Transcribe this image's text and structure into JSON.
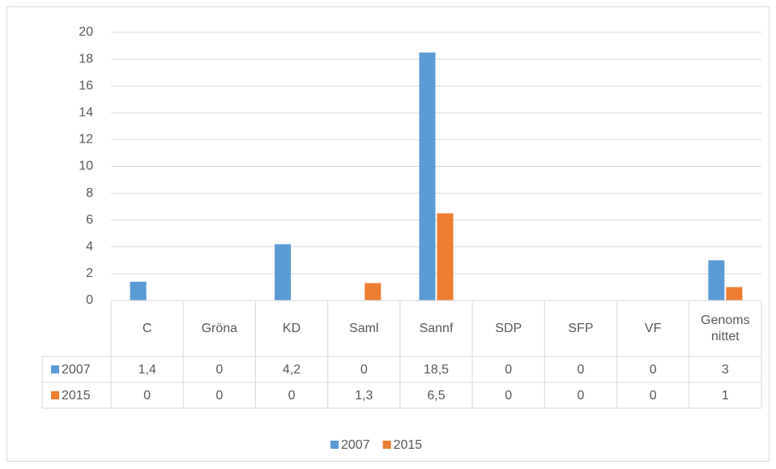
{
  "chart_data": {
    "type": "bar",
    "categories": [
      "C",
      "Gröna",
      "KD",
      "Saml",
      "Sannf",
      "SDP",
      "SFP",
      "VF",
      "Genomsnittet"
    ],
    "series": [
      {
        "name": "2007",
        "color": "#5b9bd5",
        "values": [
          1.4,
          0,
          4.2,
          0,
          18.5,
          0,
          0,
          0,
          3
        ],
        "value_labels": [
          "1,4",
          "0",
          "4,2",
          "0",
          "18,5",
          "0",
          "0",
          "0",
          "3"
        ]
      },
      {
        "name": "2015",
        "color": "#ed7d31",
        "values": [
          0,
          0,
          0,
          1.3,
          6.5,
          0,
          0,
          0,
          1
        ],
        "value_labels": [
          "0",
          "0",
          "0",
          "1,3",
          "6,5",
          "0",
          "0",
          "0",
          "1"
        ]
      }
    ],
    "ylim": [
      0,
      20
    ],
    "yticks": [
      0,
      2,
      4,
      6,
      8,
      10,
      12,
      14,
      16,
      18,
      20
    ],
    "grid": true,
    "legend": "bottom",
    "data_table": true
  }
}
